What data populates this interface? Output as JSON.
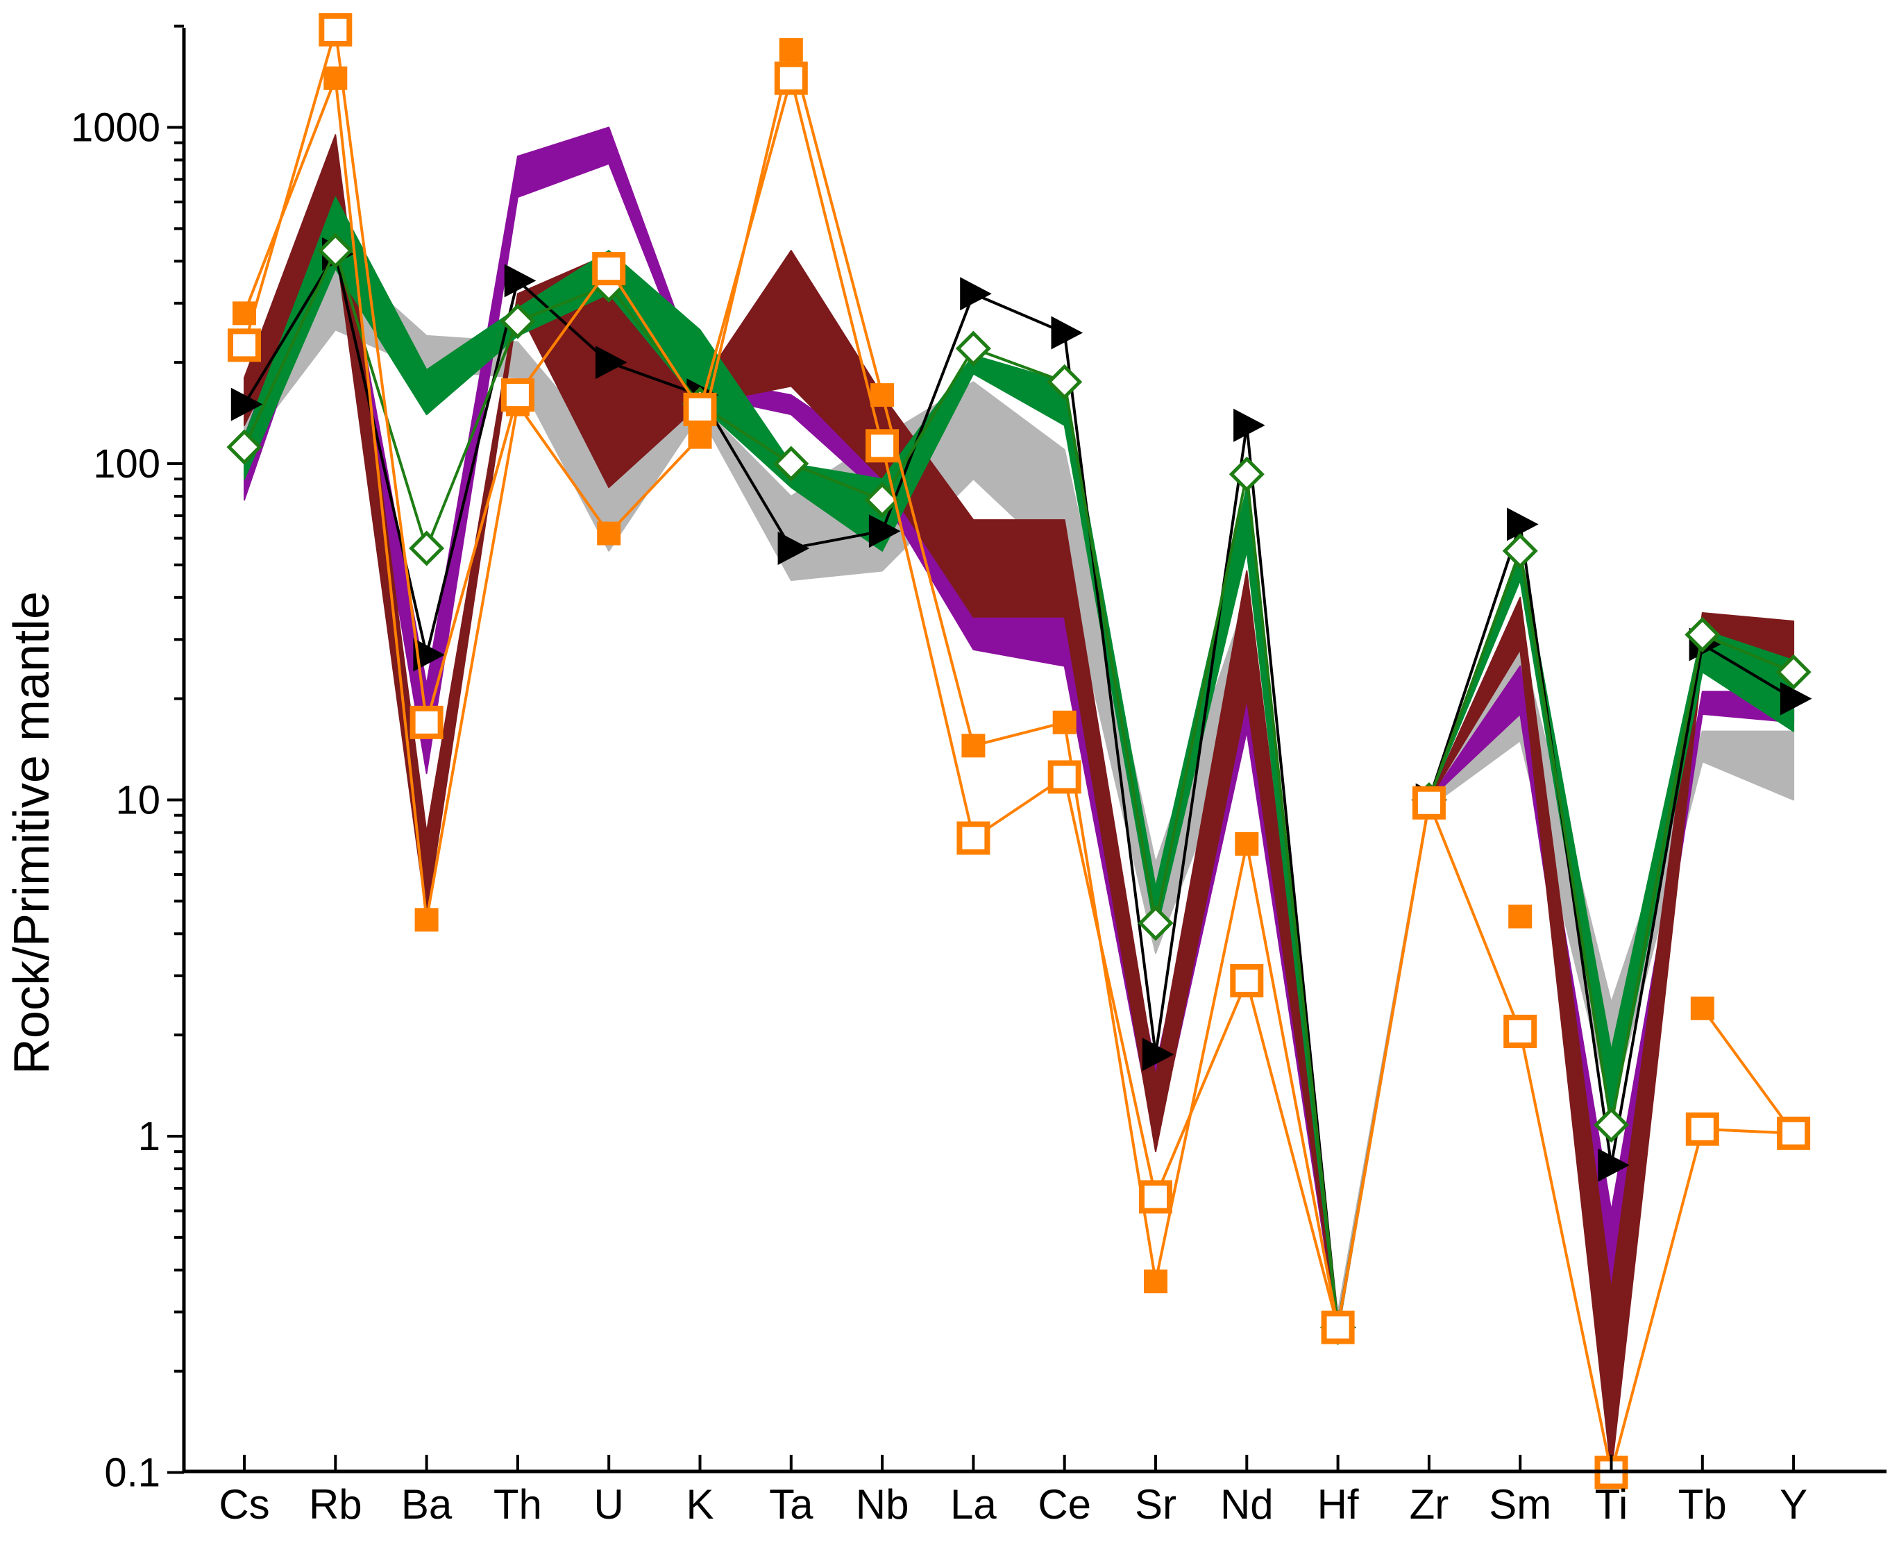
{
  "chart_data": {
    "type": "line",
    "title": "",
    "xlabel": "",
    "ylabel": "Rock/Primitive mantle",
    "yscale": "log",
    "ylim": [
      0.1,
      2000
    ],
    "ytick_values": [
      0.1,
      1,
      10,
      100,
      1000
    ],
    "ytick_labels": [
      "0.1",
      "1",
      "10",
      "100",
      "1000"
    ],
    "categories": [
      "Cs",
      "Rb",
      "Ba",
      "Th",
      "U",
      "K",
      "Ta",
      "Nb",
      "La",
      "Ce",
      "Sr",
      "Nd",
      "Hf",
      "Zr",
      "Sm",
      "Ti",
      "Tb",
      "Y"
    ],
    "bands": [
      {
        "name": "gray field",
        "color": "#b5b5b5",
        "upper": [
          130,
          420,
          240,
          230,
          110,
          150,
          80,
          120,
          175,
          110,
          6.5,
          40,
          0.3,
          10,
          30,
          2.5,
          16,
          16
        ],
        "lower": [
          110,
          250,
          190,
          180,
          55,
          140,
          45,
          48,
          90,
          50,
          3.5,
          18,
          0.26,
          9.5,
          15,
          1.2,
          13,
          10
        ]
      },
      {
        "name": "purple field",
        "color": "#8b0f9e",
        "upper": [
          120,
          650,
          22,
          820,
          1000,
          180,
          160,
          105,
          36,
          36,
          1.6,
          28,
          0.28,
          10,
          25,
          0.6,
          21,
          21
        ],
        "lower": [
          78,
          480,
          12,
          620,
          780,
          160,
          140,
          80,
          28,
          25,
          0.95,
          16,
          0.26,
          10,
          18,
          0.3,
          18,
          17
        ]
      },
      {
        "name": "dark red field",
        "color": "#7d1a1c",
        "upper": [
          180,
          950,
          8,
          320,
          420,
          170,
          430,
          160,
          68,
          68,
          1.5,
          48,
          0.28,
          10,
          40,
          0.35,
          36,
          34
        ],
        "lower": [
          130,
          450,
          4.5,
          290,
          85,
          150,
          170,
          90,
          35,
          35,
          0.9,
          20,
          0.26,
          10,
          28,
          0.1,
          26,
          23
        ]
      },
      {
        "name": "green field",
        "color": "#008a32",
        "upper": [
          120,
          620,
          190,
          290,
          430,
          250,
          100,
          90,
          210,
          175,
          5.5,
          85,
          0.28,
          10,
          56,
          1.8,
          32,
          26
        ],
        "lower": [
          90,
          380,
          140,
          240,
          320,
          150,
          85,
          55,
          185,
          130,
          4.0,
          55,
          0.26,
          10,
          45,
          1.1,
          24,
          16
        ]
      }
    ],
    "series": [
      {
        "name": "black triangles",
        "color": "#000000",
        "marker": "triangle-right",
        "segments": [
          {
            "categories": [
              "Cs",
              "Rb",
              "Ba",
              "Th",
              "U",
              "K",
              "Ta",
              "Nb",
              "La",
              "Ce",
              "Sr",
              "Nd",
              "Hf"
            ],
            "values": [
              150,
              420,
              27,
              350,
              200,
              160,
              56,
              63,
              320,
              245,
              1.75,
              130,
              0.27
            ]
          },
          {
            "categories": [
              "Zr",
              "Sm",
              "Ti",
              "Tb",
              "Y"
            ],
            "values": [
              10,
              66,
              0.82,
              29,
              20
            ]
          }
        ]
      },
      {
        "name": "green open diamonds",
        "color": "#1e7d14",
        "marker": "diamond-open",
        "segments": [
          {
            "categories": [
              "Cs",
              "Rb",
              "Ba",
              "Th",
              "U",
              "K",
              "Ta",
              "Nb",
              "La",
              "Ce",
              "Sr",
              "Nd",
              "Hf"
            ],
            "values": [
              112,
              430,
              56,
              265,
              340,
              150,
              100,
              78,
              220,
              175,
              4.3,
              93,
              0.27
            ]
          },
          {
            "categories": [
              "Zr",
              "Sm",
              "Ti",
              "Tb",
              "Y"
            ],
            "values": [
              10,
              55,
              1.08,
              31,
              24
            ]
          }
        ]
      },
      {
        "name": "orange filled squares",
        "color": "#ff8000",
        "marker": "square-filled",
        "segments": [
          {
            "categories": [
              "Cs",
              "Rb",
              "Ba",
              "Th",
              "U",
              "K",
              "Ta",
              "Nb",
              "La",
              "Ce",
              "Sr",
              "Nd",
              "Hf",
              "Zr"
            ],
            "values": [
              280,
              1400,
              4.4,
              150,
              62,
              120,
              1700,
              160,
              14.5,
              17,
              0.37,
              7.4,
              0.27,
              9.8
            ]
          },
          {
            "categories": [
              "Sm"
            ],
            "values": [
              4.5
            ]
          },
          {
            "categories": [
              "Tb",
              "Y"
            ],
            "values": [
              2.4,
              1.02
            ]
          }
        ]
      },
      {
        "name": "orange open squares",
        "color": "#ff8000",
        "marker": "square-open",
        "segments": [
          {
            "categories": [
              "Cs",
              "Rb",
              "Ba",
              "Th",
              "U",
              "K",
              "Ta",
              "Nb",
              "La",
              "Ce",
              "Sr",
              "Nd",
              "Hf",
              "Zr",
              "Sm",
              "Ti",
              "Tb",
              "Y"
            ],
            "values": [
              225,
              1950,
              17,
              160,
              380,
              145,
              1400,
              113,
              7.7,
              11.7,
              0.66,
              2.9,
              0.27,
              9.8,
              2.05,
              0.1,
              1.05,
              1.02
            ]
          }
        ]
      }
    ]
  }
}
